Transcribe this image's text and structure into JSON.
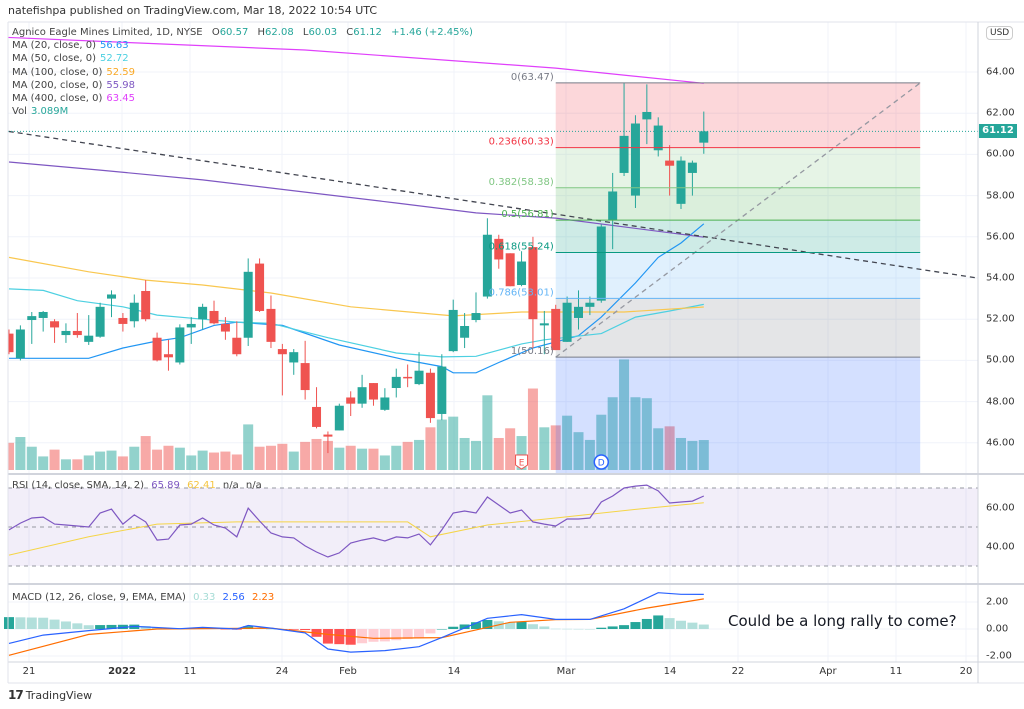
{
  "header": {
    "published": "natefishpa published on TradingView.com, Mar 18, 2022 10:54 UTC"
  },
  "legend": {
    "symbol": "Agnico Eagle Mines Limited, 1D, NYSE",
    "ohlc": [
      {
        "label": "O",
        "value": "60.57"
      },
      {
        "label": "H",
        "value": "62.08"
      },
      {
        "label": "L",
        "value": "60.03"
      },
      {
        "label": "C",
        "value": "61.12"
      }
    ],
    "change": "+1.46 (+2.45%)",
    "mas": [
      {
        "label": "MA (20, close, 0)",
        "value": "56.63",
        "color": "#2196f3"
      },
      {
        "label": "MA (50, close, 0)",
        "value": "52.72",
        "color": "#4dd0e1"
      },
      {
        "label": "MA (100, close, 0)",
        "value": "52.59",
        "color": "#f9c74f"
      },
      {
        "label": "MA (200, close, 0)",
        "value": "55.98",
        "color": "#7e57c2"
      },
      {
        "label": "MA (400, close, 0)",
        "value": "63.45",
        "color": "#e040fb"
      }
    ],
    "vol": {
      "label": "Vol",
      "value": "3.089M"
    }
  },
  "rsi_legend": {
    "label": "RSI (14, close, SMA, 14, 2)",
    "v1": "65.89",
    "v2": "62.41",
    "v3": "n/a",
    "v4": "n/a"
  },
  "macd_legend": {
    "label": "MACD (12, 26, close, 9, EMA, EMA)",
    "hist": "0.33",
    "macd": "2.56",
    "signal": "2.23"
  },
  "price_axis": {
    "currency": "USD",
    "last_price": "61.12"
  },
  "time_axis": [
    "21",
    "2022",
    "11",
    "24",
    "Feb",
    "14",
    "Mar",
    "14",
    "22",
    "Apr",
    "11",
    "20"
  ],
  "note": "Could be a long rally to come?",
  "footer": {
    "logo": "TradingView"
  },
  "colors": {
    "up": "#26a69a",
    "down": "#ef5350",
    "rsi": "#7e57c2",
    "rsi_ma": "#f5d547",
    "macd": "#2962ff",
    "signal": "#ff6d00"
  },
  "chart_data": {
    "type": "candlestick",
    "title": "Agnico Eagle Mines Limited, 1D, NYSE",
    "ylim": [
      44.5,
      66
    ],
    "price_ticks": [
      "64.00",
      "62.00",
      "60.00",
      "58.00",
      "56.00",
      "54.00",
      "52.00",
      "50.00",
      "48.00",
      "46.00"
    ],
    "candles_ohlc": [
      [
        51.3,
        51.5,
        50.3,
        50.4
      ],
      [
        50.1,
        51.7,
        50.0,
        51.5
      ],
      [
        51.96,
        52.35,
        50.8,
        52.15
      ],
      [
        52.06,
        52.4,
        51.4,
        52.35
      ],
      [
        51.9,
        52.0,
        50.85,
        51.6
      ],
      [
        51.23,
        51.8,
        50.85,
        51.43
      ],
      [
        51.43,
        52.3,
        51.1,
        51.23
      ],
      [
        50.9,
        52.2,
        50.75,
        51.2
      ],
      [
        51.15,
        52.8,
        51.1,
        52.6
      ],
      [
        53.0,
        53.4,
        52.1,
        53.2
      ],
      [
        52.06,
        52.3,
        51.4,
        51.77
      ],
      [
        51.9,
        53.2,
        51.6,
        52.8
      ],
      [
        53.37,
        53.9,
        51.9,
        52.0
      ],
      [
        51.1,
        51.35,
        49.95,
        50.0
      ],
      [
        50.3,
        51.0,
        49.5,
        50.15
      ],
      [
        49.9,
        51.75,
        49.8,
        51.6
      ],
      [
        51.6,
        52.1,
        50.8,
        51.77
      ],
      [
        52.0,
        52.75,
        51.5,
        52.6
      ],
      [
        52.4,
        52.9,
        51.75,
        51.8
      ],
      [
        51.77,
        52.1,
        51.0,
        51.4
      ],
      [
        51.1,
        51.9,
        50.2,
        50.3
      ],
      [
        51.1,
        54.95,
        50.7,
        54.3
      ],
      [
        54.7,
        54.95,
        52.35,
        52.4
      ],
      [
        52.5,
        53.15,
        50.6,
        50.9
      ],
      [
        50.55,
        50.8,
        48.3,
        50.3
      ],
      [
        49.9,
        50.55,
        49.3,
        50.4
      ],
      [
        49.87,
        50.95,
        48.1,
        48.56
      ],
      [
        47.74,
        48.7,
        46.7,
        46.77
      ],
      [
        46.4,
        46.55,
        45.5,
        46.3
      ],
      [
        46.6,
        47.9,
        46.6,
        47.8
      ],
      [
        48.2,
        48.5,
        47.3,
        47.9
      ],
      [
        47.9,
        49.3,
        47.7,
        48.7
      ],
      [
        48.9,
        48.9,
        47.8,
        48.1
      ],
      [
        47.6,
        48.65,
        47.55,
        48.2
      ],
      [
        48.66,
        49.6,
        48.2,
        49.2
      ],
      [
        49.2,
        49.8,
        48.7,
        49.15
      ],
      [
        48.85,
        50.4,
        48.8,
        49.5
      ],
      [
        49.4,
        49.6,
        46.97,
        47.2
      ],
      [
        47.4,
        50.3,
        47.1,
        49.7
      ],
      [
        50.45,
        52.95,
        50.4,
        52.45
      ],
      [
        51.1,
        52.3,
        50.6,
        51.67
      ],
      [
        51.96,
        53.3,
        51.85,
        52.3
      ],
      [
        53.1,
        56.9,
        53.0,
        56.1
      ],
      [
        55.9,
        56.1,
        54.45,
        54.9
      ],
      [
        55.2,
        55.2,
        53.6,
        53.6
      ],
      [
        53.66,
        55.3,
        53.6,
        54.8
      ],
      [
        55.5,
        56.0,
        50.6,
        52.0
      ],
      [
        51.7,
        52.4,
        50.3,
        51.8
      ],
      [
        52.5,
        52.7,
        50.5,
        50.5
      ],
      [
        50.9,
        53.1,
        50.9,
        52.8
      ],
      [
        52.06,
        53.4,
        51.5,
        52.6
      ],
      [
        52.6,
        53.1,
        52.2,
        52.8
      ],
      [
        52.9,
        56.6,
        52.8,
        56.5
      ],
      [
        56.8,
        59.1,
        55.4,
        58.2
      ],
      [
        59.1,
        63.47,
        58.95,
        60.9
      ],
      [
        58.0,
        61.9,
        57.4,
        61.5
      ],
      [
        61.7,
        63.4,
        60.5,
        62.06
      ],
      [
        60.2,
        61.8,
        59.9,
        61.4
      ],
      [
        59.7,
        60.45,
        58.0,
        59.45
      ],
      [
        57.6,
        59.9,
        57.35,
        59.7
      ],
      [
        59.1,
        59.7,
        58.0,
        59.6
      ],
      [
        60.57,
        62.08,
        60.03,
        61.12
      ]
    ],
    "volume_millions": [
      2.8,
      3.4,
      2.4,
      1.4,
      2.1,
      1.1,
      1.1,
      1.5,
      1.9,
      2.0,
      1.4,
      2.4,
      3.5,
      2.1,
      2.5,
      2.3,
      1.5,
      2.0,
      1.8,
      1.9,
      1.6,
      4.7,
      2.4,
      2.5,
      2.7,
      1.9,
      2.9,
      3.2,
      3.0,
      2.3,
      2.5,
      2.2,
      2.2,
      1.5,
      2.5,
      2.9,
      3.1,
      4.4,
      5.2,
      5.5,
      3.3,
      3.0,
      7.7,
      3.3,
      4.3,
      3.5,
      8.4,
      4.4,
      4.6,
      5.6,
      3.9,
      3.1,
      5.7,
      7.5,
      11.4,
      7.5,
      7.4,
      4.3,
      4.5,
      3.3,
      3.0,
      3.089
    ],
    "moving_averages": [
      {
        "name": "MA20",
        "points": [
          [
            0,
            50.1
          ],
          [
            7,
            50.1
          ],
          [
            10,
            50.6
          ],
          [
            13,
            50.94
          ],
          [
            15,
            51.1
          ],
          [
            18,
            51.7
          ],
          [
            20,
            51.86
          ],
          [
            24,
            51.7
          ],
          [
            29,
            50.75
          ],
          [
            35,
            50.0
          ],
          [
            38,
            49.7
          ],
          [
            39,
            49.4
          ],
          [
            41,
            49.4
          ],
          [
            43,
            49.9
          ],
          [
            46,
            50.6
          ],
          [
            48,
            50.9
          ],
          [
            50,
            51.2
          ],
          [
            52,
            52.1
          ],
          [
            55,
            53.76
          ],
          [
            57,
            55.0
          ],
          [
            59,
            55.7
          ],
          [
            61,
            56.63
          ]
        ]
      },
      {
        "name": "MA50",
        "points": [
          [
            0,
            53.47
          ],
          [
            3,
            53.4
          ],
          [
            6,
            52.9
          ],
          [
            10,
            52.6
          ],
          [
            13,
            52.2
          ],
          [
            17,
            52.0
          ],
          [
            20,
            51.86
          ],
          [
            23,
            51.8
          ],
          [
            28,
            51.1
          ],
          [
            34,
            50.36
          ],
          [
            38,
            50.17
          ],
          [
            41,
            50.2
          ],
          [
            45,
            50.8
          ],
          [
            47,
            51.0
          ],
          [
            52,
            51.3
          ],
          [
            55,
            52.1
          ],
          [
            58,
            52.4
          ],
          [
            61,
            52.72
          ]
        ]
      },
      {
        "name": "MA100",
        "points": [
          [
            0,
            55.0
          ],
          [
            7,
            54.3
          ],
          [
            12,
            53.9
          ],
          [
            17,
            53.66
          ],
          [
            23,
            53.27
          ],
          [
            30,
            52.6
          ],
          [
            39,
            52.16
          ],
          [
            45,
            52.35
          ],
          [
            54,
            52.35
          ],
          [
            61,
            52.59
          ]
        ]
      },
      {
        "name": "MA200",
        "points": [
          [
            0,
            59.63
          ],
          [
            8,
            59.24
          ],
          [
            17,
            58.76
          ],
          [
            26,
            58.17
          ],
          [
            34,
            57.64
          ],
          [
            41,
            57.16
          ],
          [
            48,
            56.91
          ],
          [
            61,
            55.98
          ]
        ]
      },
      {
        "name": "MA400",
        "points": [
          [
            -1,
            65.7
          ],
          [
            26,
            65.07
          ],
          [
            48,
            64.19
          ],
          [
            61,
            63.45
          ]
        ]
      }
    ],
    "fib_retracement": {
      "start_index": 48,
      "end_index": 80,
      "levels": [
        {
          "ratio": 0,
          "price": 63.47,
          "label": "0(63.47)",
          "color": "#787b86"
        },
        {
          "ratio": 0.236,
          "price": 60.33,
          "label": "0.236(60.33)",
          "color": "#f23645"
        },
        {
          "ratio": 0.382,
          "price": 58.38,
          "label": "0.382(58.38)",
          "color": "#81c784"
        },
        {
          "ratio": 0.5,
          "price": 56.81,
          "label": "0.5(56.81)",
          "color": "#4caf50"
        },
        {
          "ratio": 0.618,
          "price": 55.24,
          "label": "0.618(55.24)",
          "color": "#089981"
        },
        {
          "ratio": 0.786,
          "price": 53.01,
          "label": "0.786(53.01)",
          "color": "#64b5f6"
        },
        {
          "ratio": 1,
          "price": 50.16,
          "label": "1(50.16)",
          "color": "#787b86"
        }
      ]
    },
    "trend_lines": [
      {
        "name": "downtrend",
        "from": [
          -0.8,
          61.18
        ],
        "to": [
          89.1,
          53.66
        ],
        "color": "#434651"
      },
      {
        "name": "uptrend",
        "from": [
          48,
          50.16
        ],
        "to": [
          80,
          63.47
        ],
        "color": "#9598a1"
      }
    ],
    "date_range": {
      "start_index": 48,
      "end_index": 80
    },
    "markers": [
      {
        "index": 45,
        "letter": "E",
        "kind": "earnings"
      },
      {
        "index": 52,
        "letter": "D",
        "kind": "dividend"
      }
    ],
    "rsi": {
      "ylim": [
        20,
        80
      ],
      "levels": [
        70,
        50,
        30
      ],
      "ticks": [
        "60.00",
        "40.00"
      ],
      "points": [
        [
          0,
          48.5
        ],
        [
          1,
          52
        ],
        [
          2,
          54.6
        ],
        [
          3,
          55.1
        ],
        [
          4,
          51.5
        ],
        [
          5,
          51
        ],
        [
          7,
          50
        ],
        [
          8,
          57.2
        ],
        [
          9,
          59.2
        ],
        [
          10,
          51.5
        ],
        [
          11,
          56.2
        ],
        [
          12,
          52.6
        ],
        [
          13,
          43.3
        ],
        [
          14,
          43.8
        ],
        [
          15,
          51
        ],
        [
          16,
          51.5
        ],
        [
          17,
          54.6
        ],
        [
          18,
          51
        ],
        [
          19,
          49.5
        ],
        [
          20,
          44.9
        ],
        [
          21,
          59.7
        ],
        [
          22,
          53.1
        ],
        [
          23,
          46.9
        ],
        [
          24,
          44.9
        ],
        [
          25,
          44.4
        ],
        [
          26,
          40.3
        ],
        [
          27,
          37.2
        ],
        [
          28,
          34.6
        ],
        [
          29,
          36.7
        ],
        [
          30,
          41.8
        ],
        [
          31,
          43.3
        ],
        [
          32,
          44.4
        ],
        [
          33,
          42.8
        ],
        [
          34,
          44.9
        ],
        [
          35,
          44.4
        ],
        [
          36,
          46.4
        ],
        [
          37,
          40.8
        ],
        [
          38,
          48.5
        ],
        [
          39,
          57.2
        ],
        [
          40,
          58.2
        ],
        [
          41,
          57.2
        ],
        [
          42,
          65.4
        ],
        [
          43,
          61.3
        ],
        [
          44,
          57.2
        ],
        [
          45,
          58.7
        ],
        [
          46,
          52.6
        ],
        [
          47,
          51.5
        ],
        [
          48,
          50.5
        ],
        [
          49,
          54.1
        ],
        [
          50,
          54.1
        ],
        [
          51,
          54.6
        ],
        [
          52,
          62.8
        ],
        [
          53,
          65.9
        ],
        [
          54,
          70
        ],
        [
          55,
          71
        ],
        [
          56,
          71.5
        ],
        [
          57,
          68.5
        ],
        [
          58,
          62.3
        ],
        [
          59,
          62.8
        ],
        [
          60,
          63.3
        ],
        [
          61,
          65.89
        ]
      ],
      "ma_points": [
        [
          0,
          35.6
        ],
        [
          7,
          45
        ],
        [
          13,
          51.5
        ],
        [
          20,
          52.6
        ],
        [
          35,
          52.6
        ],
        [
          37,
          45
        ],
        [
          42,
          51
        ],
        [
          48,
          54.6
        ],
        [
          55,
          59
        ],
        [
          61,
          62.41
        ]
      ]
    },
    "macd": {
      "ticks": [
        "2.00",
        "0.00",
        "-2.00"
      ],
      "macd_points": [
        [
          0,
          -1.07
        ],
        [
          3,
          -0.45
        ],
        [
          7,
          -0.12
        ],
        [
          11,
          0.19
        ],
        [
          15,
          0.02
        ],
        [
          17,
          0.12
        ],
        [
          20,
          0
        ],
        [
          21,
          0.26
        ],
        [
          23,
          0.07
        ],
        [
          26,
          -0.29
        ],
        [
          28,
          -1.48
        ],
        [
          30,
          -1.71
        ],
        [
          33,
          -1.6
        ],
        [
          36,
          -1.31
        ],
        [
          38,
          -0.64
        ],
        [
          42,
          0.79
        ],
        [
          45,
          1.07
        ],
        [
          48,
          0.71
        ],
        [
          51,
          0.71
        ],
        [
          54,
          1.5
        ],
        [
          57,
          2.69
        ],
        [
          59,
          2.57
        ],
        [
          61,
          2.56
        ]
      ],
      "signal_points": [
        [
          0,
          -1.95
        ],
        [
          7,
          -0.4
        ],
        [
          13,
          0
        ],
        [
          23,
          0.07
        ],
        [
          28,
          -0.4
        ],
        [
          32,
          -0.69
        ],
        [
          38,
          -0.64
        ],
        [
          44,
          0.5
        ],
        [
          48,
          0.69
        ],
        [
          51,
          0.71
        ],
        [
          56,
          1.55
        ],
        [
          61,
          2.23
        ]
      ]
    }
  }
}
